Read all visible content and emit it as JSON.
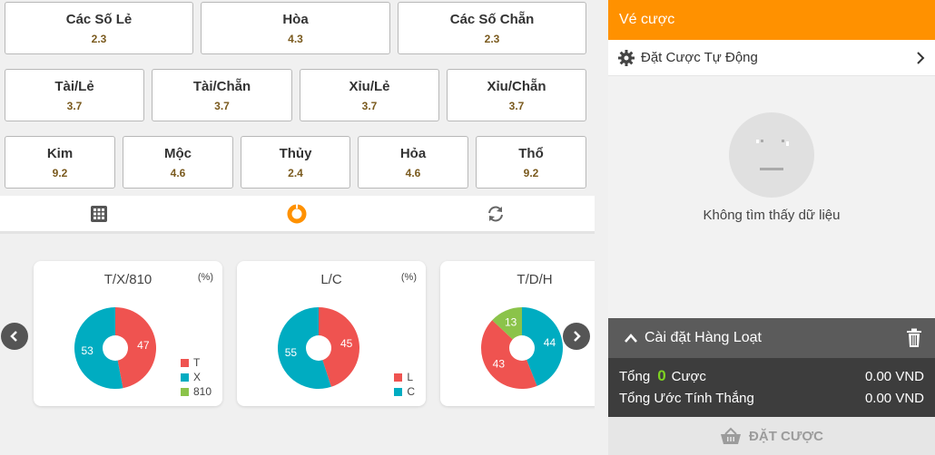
{
  "bet_rows": [
    [
      {
        "label": "Các Số Lẻ",
        "odd": "2.3"
      },
      {
        "label": "Hòa",
        "odd": "4.3"
      },
      {
        "label": "Các Số Chẵn",
        "odd": "2.3"
      }
    ],
    [
      {
        "label": "Tài/Lẻ",
        "odd": "3.7"
      },
      {
        "label": "Tài/Chẵn",
        "odd": "3.7"
      },
      {
        "label": "Xỉu/Lẻ",
        "odd": "3.7"
      },
      {
        "label": "Xỉu/Chẵn",
        "odd": "3.7"
      }
    ],
    [
      {
        "label": "Kim",
        "odd": "9.2"
      },
      {
        "label": "Mộc",
        "odd": "4.6"
      },
      {
        "label": "Thủy",
        "odd": "2.4"
      },
      {
        "label": "Hỏa",
        "odd": "4.6"
      },
      {
        "label": "Thổ",
        "odd": "9.2"
      }
    ]
  ],
  "tabs": [
    "grid-icon",
    "donut-chart-icon",
    "refresh-icon"
  ],
  "chart_data": [
    {
      "type": "pie",
      "title": "T/X/810",
      "unit": "(%)",
      "series": [
        {
          "name": "T",
          "value": 47,
          "color": "#ef5350"
        },
        {
          "name": "X",
          "value": 53,
          "color": "#00acc1"
        },
        {
          "name": "810",
          "value": 0,
          "color": "#8bc34a"
        }
      ]
    },
    {
      "type": "pie",
      "title": "L/C",
      "unit": "(%)",
      "series": [
        {
          "name": "L",
          "value": 45,
          "color": "#ef5350"
        },
        {
          "name": "C",
          "value": 55,
          "color": "#00acc1"
        }
      ]
    },
    {
      "type": "pie",
      "title": "T/D/H",
      "unit": "",
      "series": [
        {
          "name": "",
          "value": 44,
          "color": "#00acc1"
        },
        {
          "name": "",
          "value": 43,
          "color": "#ef5350"
        },
        {
          "name": "",
          "value": 13,
          "color": "#8bc34a"
        }
      ]
    }
  ],
  "ticket": {
    "title": "Vé cược",
    "auto_bet_label": "Đặt Cược Tự Động",
    "empty_text": "Không tìm thấy dữ liệu",
    "batch_label": "Cài đặt Hàng Loạt",
    "total_label": "Tổng",
    "total_count": "0",
    "bet_label": "Cược",
    "total_amount": "0.00 VND",
    "win_label": "Tổng Ước Tính Thắng",
    "win_amount": "0.00 VND",
    "place_label": "ĐẶT CƯỢC"
  },
  "colors": {
    "accent": "#ff9100",
    "odd_text": "#7a5a1e",
    "count": "#7ed321"
  }
}
